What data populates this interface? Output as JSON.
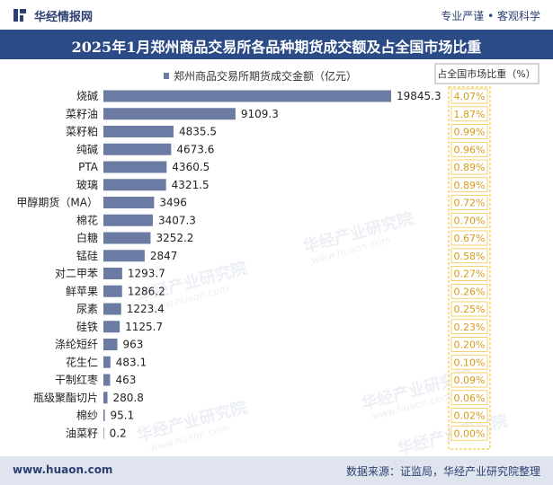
{
  "header": {
    "brand": "华经情报网",
    "tagline": "专业严谨 • 客观科学"
  },
  "footer": {
    "website": "www.huaon.com",
    "source": "数据来源：证监局，华经产业研究院整理"
  },
  "watermark": {
    "text": "华经产业研究院",
    "url": "www.huaon.com"
  },
  "colors": {
    "bar": "#6b7ba4",
    "title_bg": "#2b4b86",
    "share_box_border": "#f2c94c",
    "share_text": "#d69a1a"
  },
  "chart_data": {
    "type": "bar",
    "orientation": "horizontal",
    "title": "2025年1月郑州商品交易所各品种期货成交额及占全国市场比重",
    "categories": [
      "烧碱",
      "菜籽油",
      "菜籽粕",
      "纯碱",
      "PTA",
      "玻璃",
      "甲醇期货（MA）",
      "棉花",
      "白糖",
      "锰硅",
      "对二甲苯",
      "鲜苹果",
      "尿素",
      "硅铁",
      "涤纶短纤",
      "花生仁",
      "干制红枣",
      "瓶级聚酯切片",
      "棉纱",
      "油菜籽"
    ],
    "series": [
      {
        "name": "郑州商品交易所期货成交金额（亿元）",
        "values": [
          19845.3,
          9109.3,
          4835.5,
          4673.6,
          4360.5,
          4321.5,
          3496,
          3407.3,
          3252.2,
          2847,
          1293.7,
          1286.2,
          1223.4,
          1125.7,
          963,
          483.1,
          463,
          280.8,
          95.1,
          0.2
        ]
      },
      {
        "name": "占全国市场比重（%）",
        "values": [
          "4.07%",
          "1.87%",
          "0.99%",
          "0.96%",
          "0.89%",
          "0.89%",
          "0.72%",
          "0.70%",
          "0.67%",
          "0.58%",
          "0.27%",
          "0.26%",
          "0.25%",
          "0.23%",
          "0.20%",
          "0.10%",
          "0.09%",
          "0.06%",
          "0.02%",
          "0.00%"
        ]
      }
    ],
    "xlim": [
      0,
      19845.3
    ],
    "grid": false,
    "legend_position": "top"
  }
}
